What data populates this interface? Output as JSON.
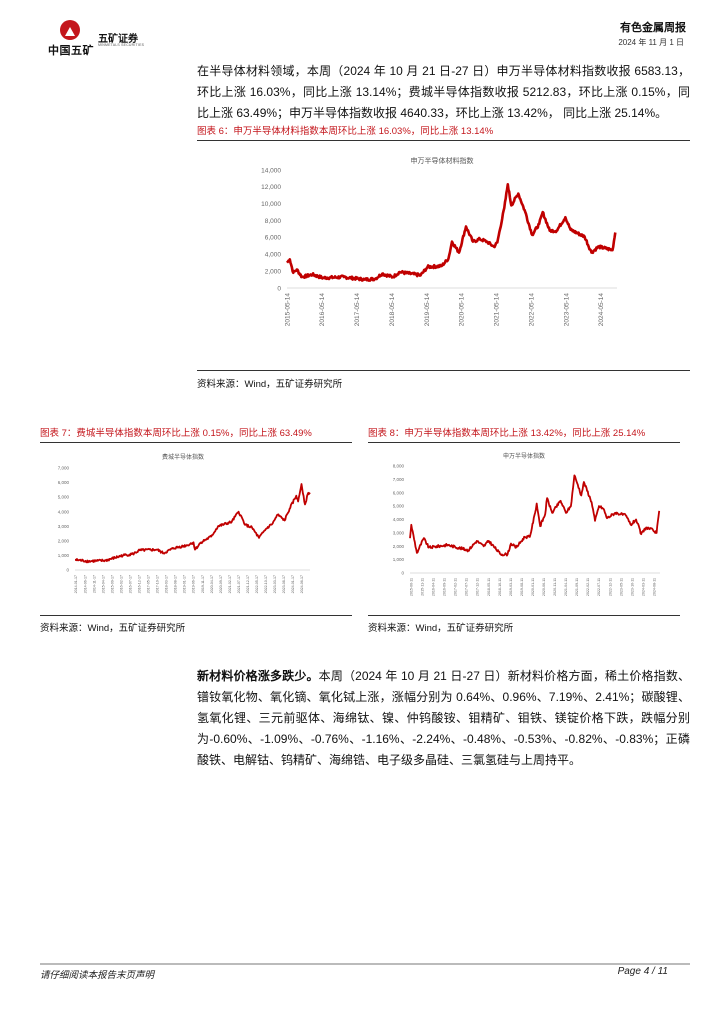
{
  "header": {
    "logo_group": "中国五矿",
    "logo_company": "五矿证券",
    "logo_company_en": "MINMETALS SECURITIES",
    "report_title": "有色金属周报",
    "date": "2024 年 11 月 1 日"
  },
  "paragraph1": "在半导体材料领域，本周（2024 年 10 月 21 日-27 日）申万半导体材料指数收报 6583.13，环比上涨 16.03%，同比上涨 13.14%；费城半导体指数收报 5212.83，环比上涨 0.15%，同比上涨 63.49%；申万半导体指数收报 4640.33，环比上涨 13.42%， 同比上涨 25.14%。",
  "figures": {
    "fig6": {
      "caption": "图表 6：申万半导体材料指数本周环比上涨 16.03%，同比上涨 13.14%",
      "source": "资料来源：Wind，五矿证券研究所"
    },
    "fig7": {
      "caption": "图表 7：费城半导体指数本周环比上涨 0.15%，同比上涨 63.49%",
      "source": "资料来源：Wind，五矿证券研究所"
    },
    "fig8": {
      "caption": "图表 8：申万半导体指数本周环比上涨 13.42%，同比上涨 25.14%",
      "source": "资料来源：Wind，五矿证券研究所"
    }
  },
  "paragraph2": {
    "lead": "新材料价格涨多跌少。",
    "body": "本周（2024 年 10 月 21 日-27 日）新材料价格方面，稀土价格指数、镨钕氧化物、氧化镝、氧化铽上涨，涨幅分别为 0.64%、0.96%、7.19%、2.41%；碳酸锂、氢氧化锂、三元前驱体、海绵钛、镍、仲钨酸铵、钼精矿、钼铁、镁锭价格下跌，跌幅分别为-0.60%、-1.09%、-0.76%、-1.16%、-2.24%、-0.48%、-0.53%、-0.82%、-0.83%；正磷酸铁、电解钴、钨精矿、海绵锆、电子级多晶硅、三氯氢硅与上周持平。"
  },
  "footer": {
    "disclaimer": "请仔细阅读本报告末页声明",
    "page": "Page   4 / 11"
  },
  "chart_data": [
    {
      "type": "line",
      "title": "申万半导体材料指数",
      "color": "#c00000",
      "ylim": [
        0,
        14000
      ],
      "yticks": [
        "0",
        "2,000",
        "4,000",
        "6,000",
        "8,000",
        "10,000",
        "12,000",
        "14,000"
      ],
      "xlim": [
        2015.37,
        2024.83
      ],
      "xticks": [
        "2015-05-14",
        "2016-05-14",
        "2017-05-14",
        "2018-05-14",
        "2019-05-14",
        "2020-05-14",
        "2021-05-14",
        "2022-05-14",
        "2023-05-14",
        "2024-05-14"
      ],
      "points": [
        [
          2015.37,
          3000
        ],
        [
          2015.45,
          3400
        ],
        [
          2015.55,
          1800
        ],
        [
          2015.65,
          2200
        ],
        [
          2015.8,
          1300
        ],
        [
          2016.1,
          1600
        ],
        [
          2016.4,
          1200
        ],
        [
          2017.0,
          1300
        ],
        [
          2017.6,
          1000
        ],
        [
          2017.9,
          1100
        ],
        [
          2018.1,
          1700
        ],
        [
          2018.4,
          1300
        ],
        [
          2018.6,
          1900
        ],
        [
          2019.2,
          1500
        ],
        [
          2019.4,
          2500
        ],
        [
          2019.8,
          2600
        ],
        [
          2020.0,
          3500
        ],
        [
          2020.1,
          5500
        ],
        [
          2020.3,
          4200
        ],
        [
          2020.5,
          7300
        ],
        [
          2020.7,
          5500
        ],
        [
          2020.9,
          5800
        ],
        [
          2021.1,
          5500
        ],
        [
          2021.3,
          4900
        ],
        [
          2021.4,
          5400
        ],
        [
          2021.6,
          9500
        ],
        [
          2021.7,
          12300
        ],
        [
          2021.8,
          9800
        ],
        [
          2022.0,
          11200
        ],
        [
          2022.2,
          9000
        ],
        [
          2022.4,
          6300
        ],
        [
          2022.6,
          7600
        ],
        [
          2022.7,
          9000
        ],
        [
          2022.9,
          6800
        ],
        [
          2023.1,
          6800
        ],
        [
          2023.35,
          8400
        ],
        [
          2023.5,
          6900
        ],
        [
          2023.9,
          6100
        ],
        [
          2024.1,
          4200
        ],
        [
          2024.3,
          4900
        ],
        [
          2024.7,
          4500
        ],
        [
          2024.78,
          6583.13
        ]
      ]
    },
    {
      "type": "line",
      "title": "费城半导体指数",
      "color": "#c00000",
      "ylim": [
        0,
        7000
      ],
      "yticks": [
        "0",
        "1,000",
        "2,000",
        "3,000",
        "4,000",
        "5,000",
        "6,000",
        "7,000"
      ],
      "xlim": [
        2014.0,
        2024.83
      ],
      "xticks": [
        "2014-01-17",
        "2014-06-17",
        "2014-11-17",
        "2015-04-17",
        "2015-09-17",
        "2016-02-17",
        "2016-07-17",
        "2016-12-17",
        "2017-05-17",
        "2017-10-17",
        "2018-03-17",
        "2018-08-17",
        "2019-01-17",
        "2019-06-17",
        "2019-11-17",
        "2020-04-17",
        "2020-09-17",
        "2021-02-17",
        "2021-07-17",
        "2021-12-17",
        "2022-05-17",
        "2022-10-17",
        "2023-03-17",
        "2023-08-17",
        "2024-01-17",
        "2024-06-17"
      ],
      "points": [
        [
          2014,
          700
        ],
        [
          2014.63,
          600
        ],
        [
          2015.41,
          650
        ],
        [
          2016.2,
          1000
        ],
        [
          2016.67,
          1100
        ],
        [
          2016.98,
          1350
        ],
        [
          2017.77,
          1400
        ],
        [
          2018.08,
          1150
        ],
        [
          2018.55,
          1500
        ],
        [
          2019.18,
          1700
        ],
        [
          2019.46,
          1900
        ],
        [
          2019.53,
          1400
        ],
        [
          2019.81,
          1900
        ],
        [
          2020.28,
          2300
        ],
        [
          2020.59,
          3000
        ],
        [
          2021.22,
          3300
        ],
        [
          2021.54,
          4000
        ],
        [
          2021.85,
          3100
        ],
        [
          2022.16,
          2900
        ],
        [
          2022.48,
          2200
        ],
        [
          2022.79,
          2800
        ],
        [
          2023.11,
          3200
        ],
        [
          2023.34,
          3800
        ],
        [
          2023.66,
          3400
        ],
        [
          2023.89,
          4200
        ],
        [
          2024.2,
          5100
        ],
        [
          2024.28,
          4700
        ],
        [
          2024.44,
          5900
        ],
        [
          2024.6,
          4500
        ],
        [
          2024.75,
          5300
        ],
        [
          2024.83,
          5212.83
        ]
      ]
    },
    {
      "type": "line",
      "title": "申万半导体指数",
      "color": "#c00000",
      "ylim": [
        0,
        8000
      ],
      "yticks": [
        "0",
        "1,000",
        "2,000",
        "3,000",
        "4,000",
        "5,000",
        "6,000",
        "7,000",
        "8,000"
      ],
      "xlim": [
        2015.4,
        2024.83
      ],
      "xticks": [
        "2015-06-11",
        "2015-11-11",
        "2016-04-11",
        "2016-09-11",
        "2017-02-11",
        "2017-07-11",
        "2017-12-11",
        "2018-05-11",
        "2018-10-11",
        "2019-03-11",
        "2019-08-11",
        "2020-01-11",
        "2020-06-11",
        "2020-11-11",
        "2021-04-11",
        "2021-09-11",
        "2022-02-11",
        "2022-07-11",
        "2022-12-11",
        "2023-05-11",
        "2023-10-11",
        "2024-03-11",
        "2024-08-11"
      ],
      "points": [
        [
          2015.4,
          2600
        ],
        [
          2015.45,
          3600
        ],
        [
          2015.66,
          1500
        ],
        [
          2015.92,
          2600
        ],
        [
          2016.11,
          1900
        ],
        [
          2016.82,
          2100
        ],
        [
          2017.6,
          1700
        ],
        [
          2017.92,
          2400
        ],
        [
          2018.18,
          2000
        ],
        [
          2018.37,
          2400
        ],
        [
          2018.82,
          1400
        ],
        [
          2019.08,
          1400
        ],
        [
          2019.21,
          2200
        ],
        [
          2019.4,
          1900
        ],
        [
          2019.73,
          2700
        ],
        [
          2019.92,
          2700
        ],
        [
          2020.12,
          4500
        ],
        [
          2020.18,
          5200
        ],
        [
          2020.31,
          3500
        ],
        [
          2020.5,
          4400
        ],
        [
          2020.57,
          5600
        ],
        [
          2020.76,
          4500
        ],
        [
          2021.08,
          5400
        ],
        [
          2021.28,
          4500
        ],
        [
          2021.47,
          5000
        ],
        [
          2021.6,
          7300
        ],
        [
          2021.73,
          6600
        ],
        [
          2021.86,
          5800
        ],
        [
          2021.96,
          6800
        ],
        [
          2022.25,
          5300
        ],
        [
          2022.38,
          3900
        ],
        [
          2022.53,
          5000
        ],
        [
          2022.7,
          4800
        ],
        [
          2022.83,
          4100
        ],
        [
          2023.15,
          4500
        ],
        [
          2023.35,
          4400
        ],
        [
          2023.54,
          4300
        ],
        [
          2023.73,
          3600
        ],
        [
          2023.93,
          4000
        ],
        [
          2024.12,
          2900
        ],
        [
          2024.31,
          3400
        ],
        [
          2024.57,
          3200
        ],
        [
          2024.7,
          3000
        ],
        [
          2024.8,
          4640.33
        ]
      ]
    }
  ]
}
